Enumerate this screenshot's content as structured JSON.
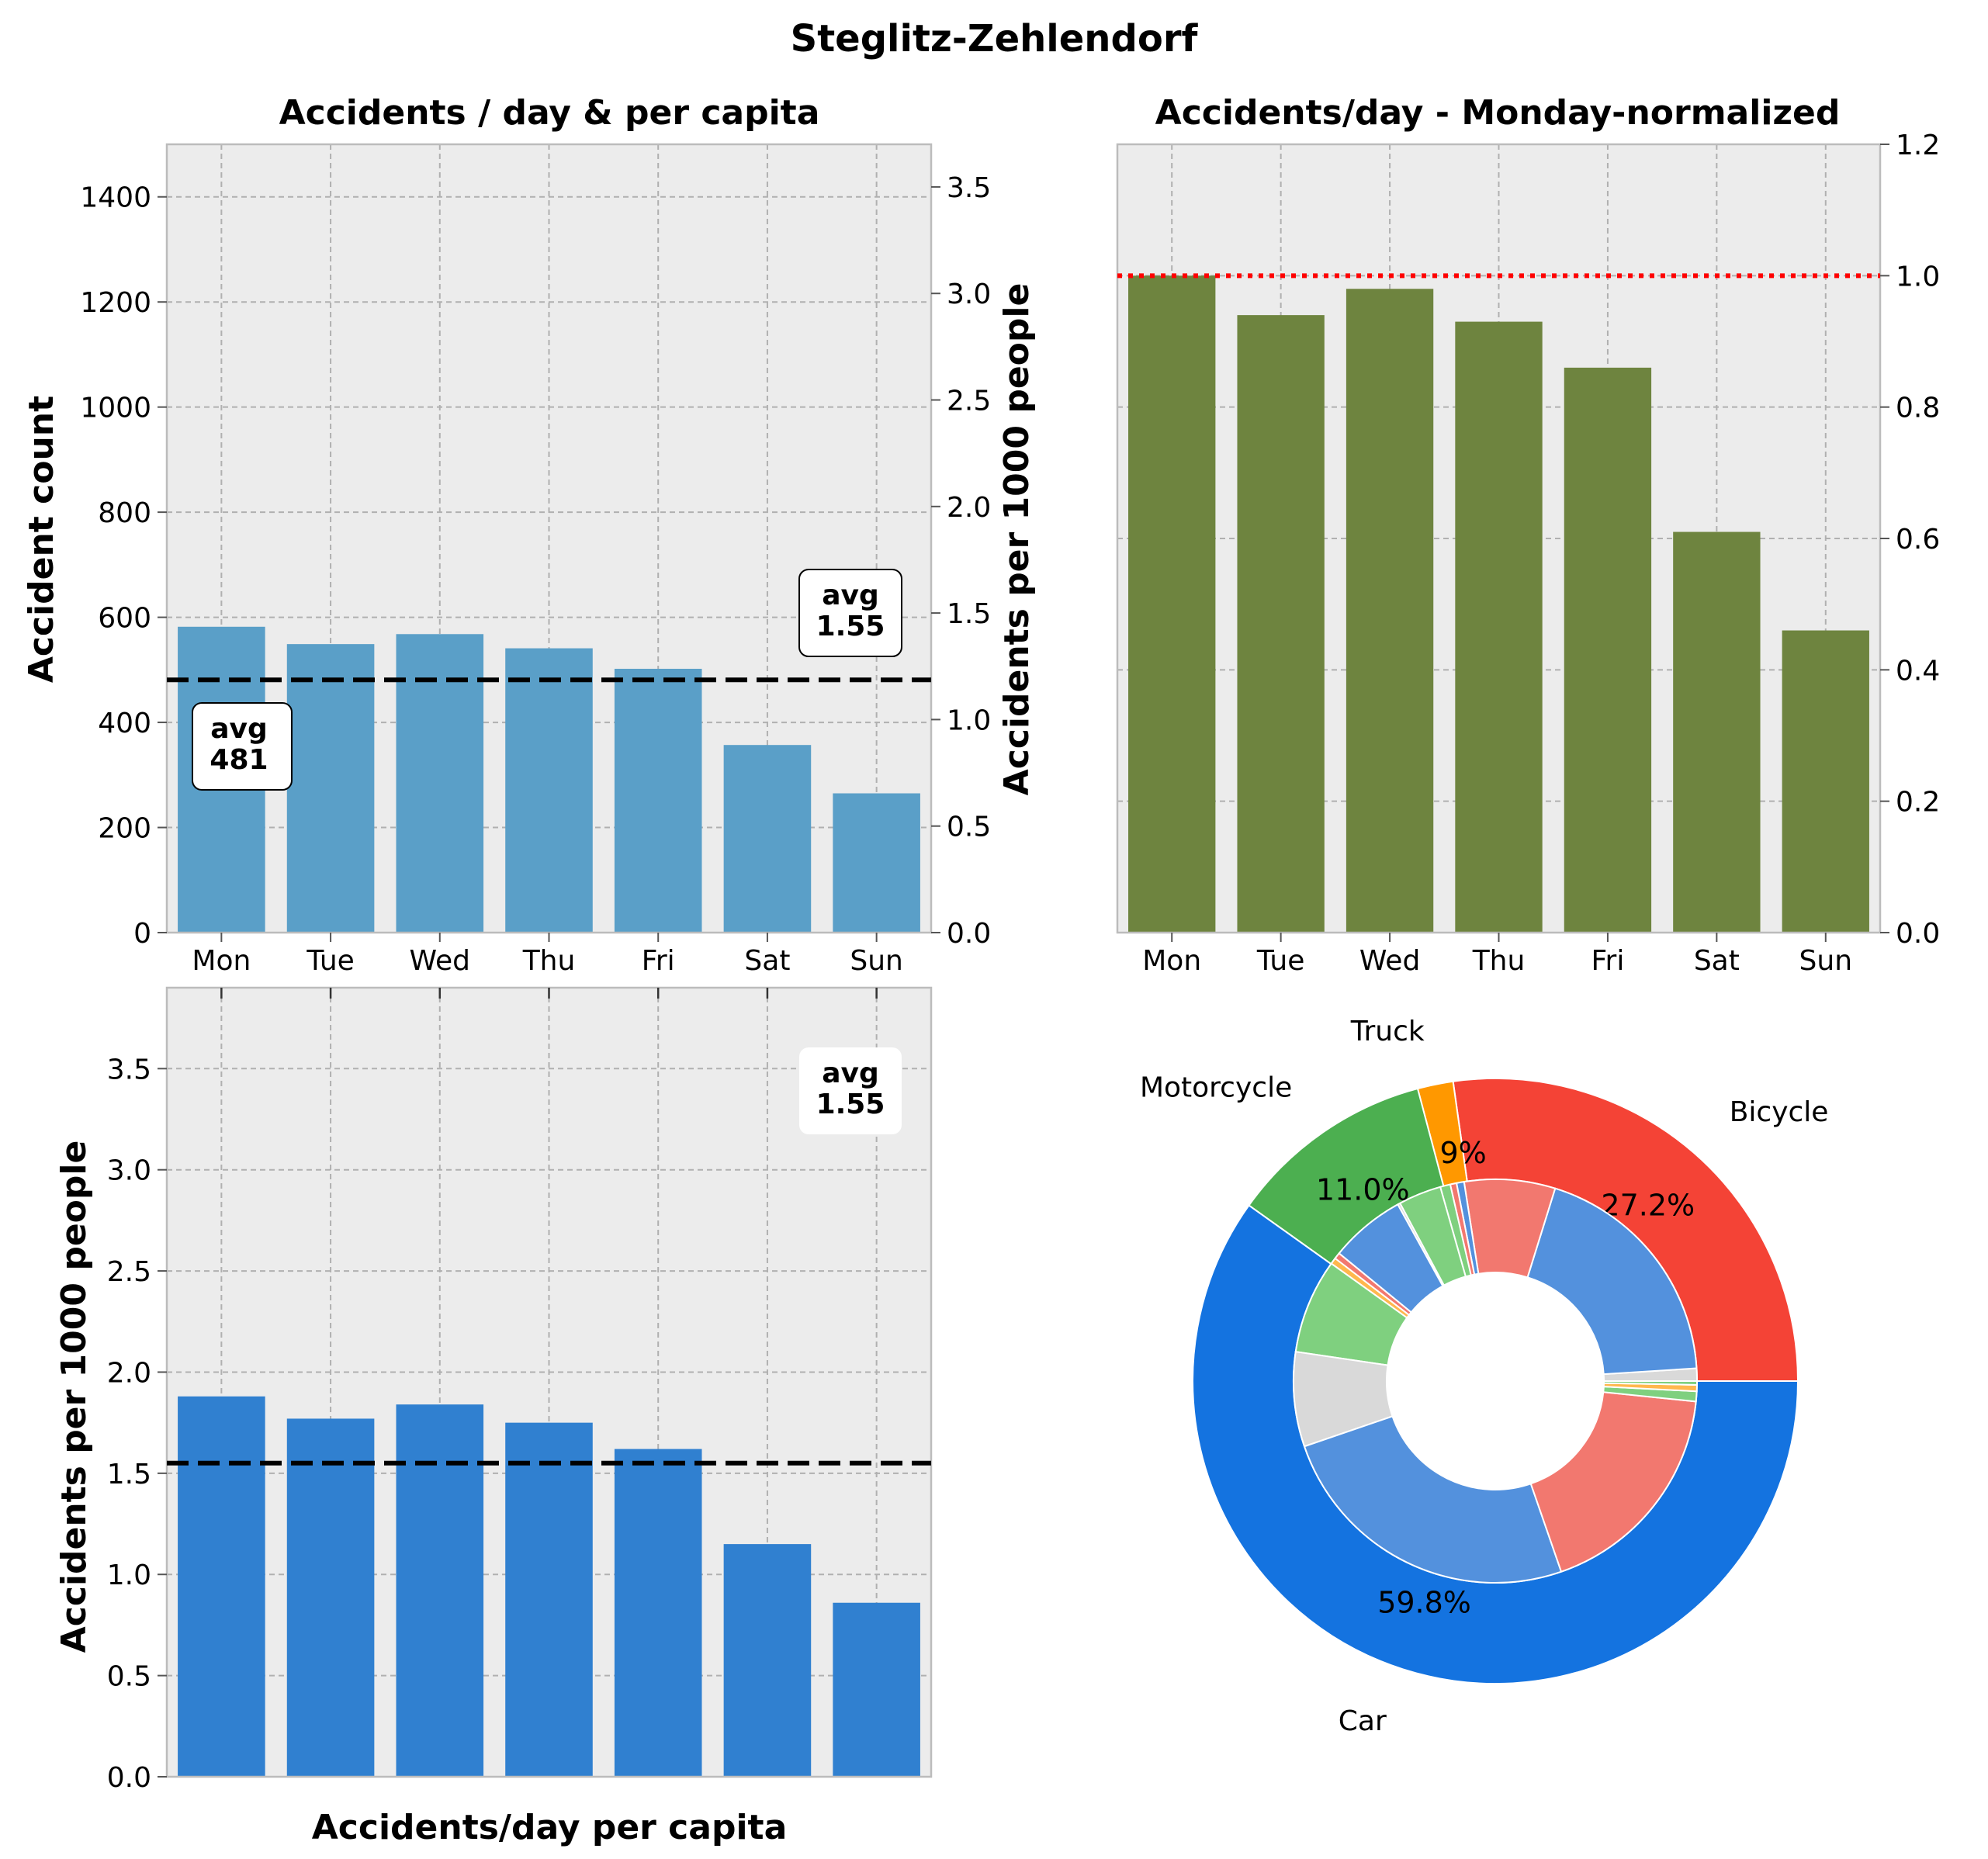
{
  "suptitle": "Steglitz-Zehlendorf",
  "chart_data": [
    {
      "type": "bar",
      "title": "Accidents / day & per capita",
      "categories": [
        "Mon",
        "Tue",
        "Wed",
        "Thu",
        "Fri",
        "Sat",
        "Sun"
      ],
      "values": [
        582,
        549,
        568,
        541,
        502,
        357,
        265
      ],
      "ylabel": "Accident count",
      "ylim": [
        0,
        1500
      ],
      "yticks": [
        "0",
        "200",
        "400",
        "600",
        "800",
        "1000",
        "1200",
        "1400"
      ],
      "ylabel_right": "Accidents per 1000 people",
      "ylim_right": [
        0,
        3.7
      ],
      "yticks_right": [
        "0.0",
        "0.5",
        "1.0",
        "1.5",
        "2.0",
        "2.5",
        "3.0",
        "3.5"
      ],
      "avg": 481,
      "avg_label": "avg\n481",
      "avg_right": 1.55,
      "avg_right_label": "avg\n1.55",
      "color": "#5a9fc8",
      "grid": true
    },
    {
      "type": "bar",
      "title": "Accidents/day - Monday-normalized",
      "categories": [
        "Mon",
        "Tue",
        "Wed",
        "Thu",
        "Fri",
        "Sat",
        "Sun"
      ],
      "values": [
        1.0,
        0.94,
        0.98,
        0.93,
        0.86,
        0.61,
        0.46
      ],
      "ylim": [
        0,
        1.2
      ],
      "yticks": [
        "0.0",
        "0.2",
        "0.4",
        "0.6",
        "0.8",
        "1.0",
        "1.2"
      ],
      "reference_line": 1.0,
      "reference_color": "#ff0000",
      "color": "#6e843f",
      "grid": true
    },
    {
      "type": "bar",
      "title": "",
      "categories": [
        "Mon",
        "Tue",
        "Wed",
        "Thu",
        "Fri",
        "Sat",
        "Sun"
      ],
      "values": [
        1.88,
        1.77,
        1.84,
        1.75,
        1.62,
        1.15,
        0.86
      ],
      "xlabel": "Accidents/day per capita",
      "ylabel": "Accidents per 1000 people",
      "ylim": [
        0,
        3.9
      ],
      "yticks": [
        "0.0",
        "0.5",
        "1.0",
        "1.5",
        "2.0",
        "2.5",
        "3.0",
        "3.5"
      ],
      "avg": 1.55,
      "avg_label": "avg\n1.55",
      "color": "#3080d0",
      "grid": true
    },
    {
      "type": "pie",
      "title": "",
      "outer": [
        {
          "label": "Bicycle",
          "value": 27.2,
          "pct": "27.2%",
          "color": "#f44336"
        },
        {
          "label": "Truck",
          "value": 1.9,
          "pct": "1.9%",
          "color": "#ff9800"
        },
        {
          "label": "Motorcycle",
          "value": 11.0,
          "pct": "11.0%",
          "color": "#4caf50"
        },
        {
          "label": "Car",
          "value": 59.8,
          "pct": "59.8%",
          "color": "#1473e0"
        }
      ],
      "inner": [
        {
          "value": 1.0,
          "color": "#d9d9d9"
        },
        {
          "value": 19.0,
          "color": "#5391dd"
        },
        {
          "value": 7.2,
          "color": "#f2786f"
        },
        {
          "value": 0.6,
          "color": "#5391dd"
        },
        {
          "value": 0.5,
          "color": "#f2786f"
        },
        {
          "value": 0.8,
          "color": "#7fd07f"
        },
        {
          "value": 3.4,
          "color": "#7fd07f"
        },
        {
          "value": 0.2,
          "color": "#d9d9d9"
        },
        {
          "value": 6.0,
          "color": "#5391dd"
        },
        {
          "value": 0.5,
          "color": "#f2786f"
        },
        {
          "value": 0.5,
          "color": "#ffb74d"
        },
        {
          "value": 7.5,
          "color": "#7fd07f"
        },
        {
          "value": 7.5,
          "color": "#d9d9d9"
        },
        {
          "value": 24.8,
          "color": "#5391dd"
        },
        {
          "value": 17.9,
          "color": "#f2786f"
        },
        {
          "value": 0.8,
          "color": "#7fd07f"
        },
        {
          "value": 0.5,
          "color": "#ffb74d"
        },
        {
          "value": 0.3,
          "color": "#7fd07f"
        }
      ]
    }
  ]
}
